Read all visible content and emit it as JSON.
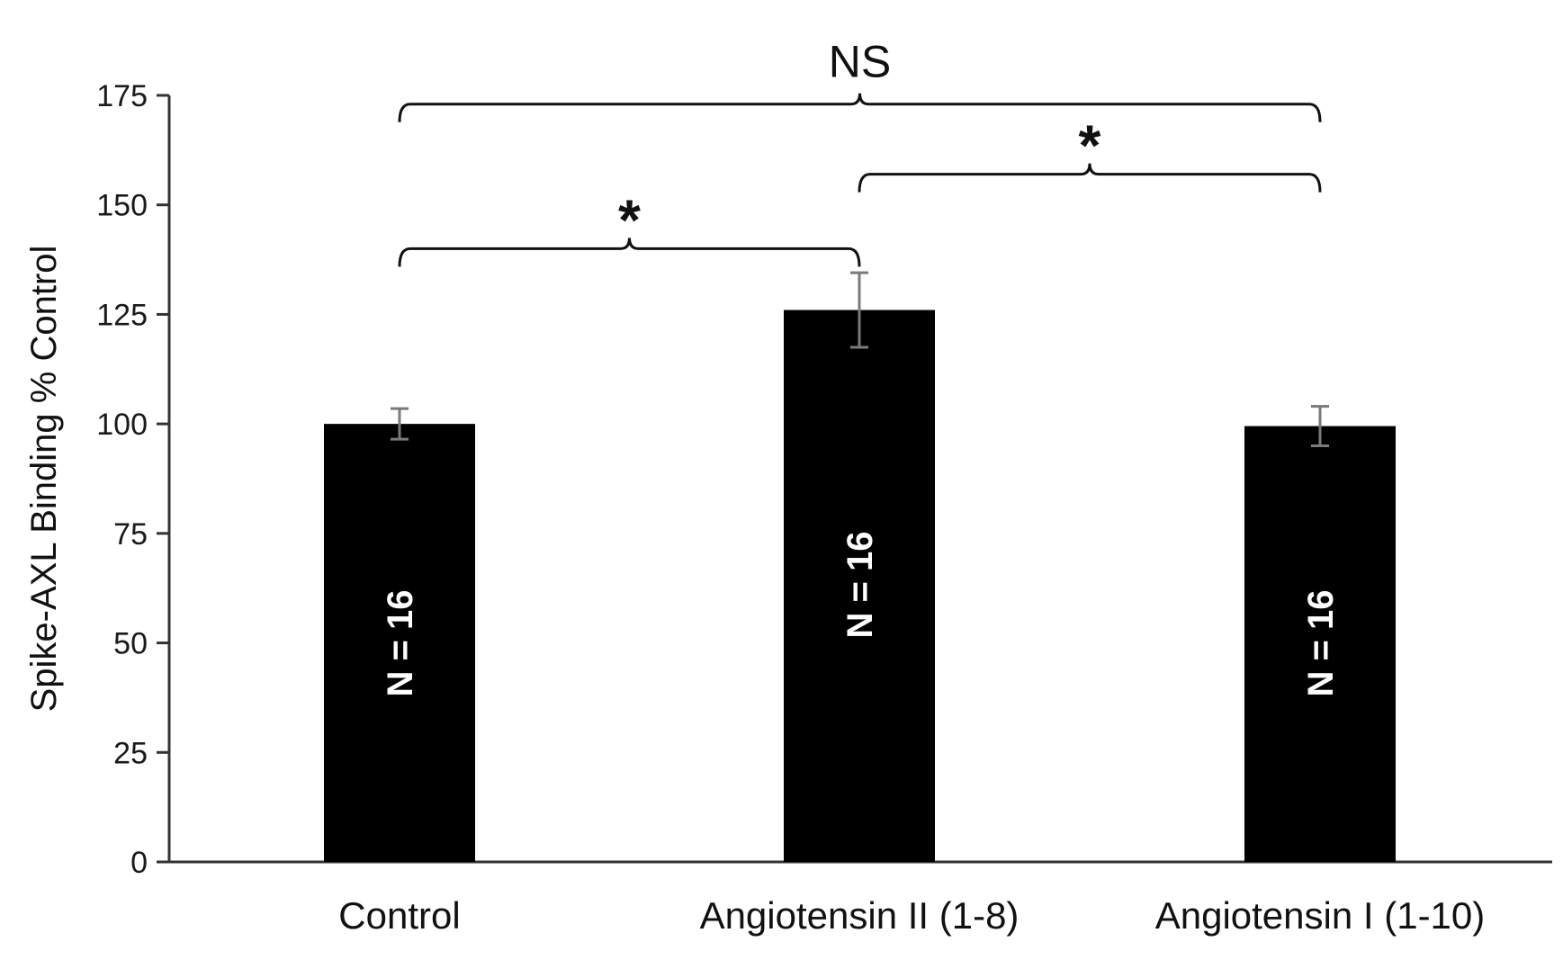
{
  "chart_data": {
    "type": "bar",
    "categories": [
      "Control",
      "Angiotensin II (1-8)",
      "Angiotensin I (1-10)"
    ],
    "values": [
      100,
      126,
      99.5
    ],
    "errors": [
      3.5,
      8.5,
      4.5
    ],
    "bar_labels": [
      "N = 16",
      "N = 16",
      "N = 16"
    ],
    "ylabel": "Spike-AXL Binding % Control",
    "ylim": [
      0,
      175
    ],
    "yticks": [
      0,
      25,
      50,
      75,
      100,
      125,
      150,
      175
    ],
    "grid": false,
    "legend": "none",
    "bar_color": "#000000",
    "error_color": "#7a7a7a",
    "significance": [
      {
        "from": 0,
        "to": 1,
        "label": "*",
        "y": 140
      },
      {
        "from": 1,
        "to": 2,
        "label": "*",
        "y": 157
      },
      {
        "from": 0,
        "to": 2,
        "label": "NS",
        "y": 173
      }
    ]
  }
}
